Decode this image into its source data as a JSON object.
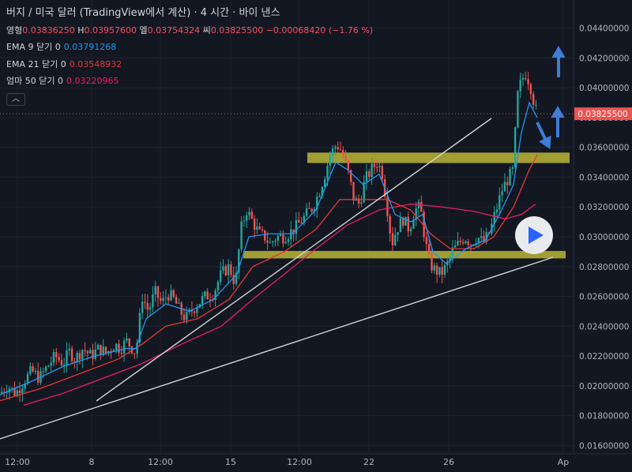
{
  "header": {
    "title": "버지 / 미국 달러 (TradingView에서 계산) · 4 시간 · 바이 낸스",
    "ohlc": {
      "o_label": "영형",
      "o": "0.03836250",
      "h_label": "H",
      "h": "0.03957600",
      "l_label": "엘",
      "l": "0.03754324",
      "c_label": "씨",
      "c": "0.03825500",
      "change": "−0.00068420 (−1.76 %)"
    },
    "indicators": [
      {
        "label": "EMA 9 닫기 0",
        "value": "0.03791268",
        "color": "#2196f3"
      },
      {
        "label": "EMA 21 닫기 0",
        "value": "0.03548932",
        "color": "#e53935"
      },
      {
        "label": "엄마 50 닫기 0",
        "value": "0.03220965",
        "color": "#e91e63"
      }
    ],
    "collapse_icon": "chevron-up-icon"
  },
  "price_label": "0.03825500",
  "colors": {
    "background": "#131722",
    "up": "#26a69a",
    "down": "#ef5350",
    "ema9": "#2196f3",
    "ema21": "#e53935",
    "ma50": "#e91e63",
    "zone": "#c5c038"
  },
  "chart_data": {
    "type": "candlestick",
    "title": "버지 / 미국 달러 (TradingView에서 계산) · 4 시간 · 바이 낸스",
    "x_ticks": [
      "12:00",
      "8",
      "12:00",
      "15",
      "12:00",
      "22",
      "26",
      "Ap"
    ],
    "y_ticks": [
      "0.04400000",
      "0.04200000",
      "0.04000000",
      "0.03800000",
      "0.03600000",
      "0.03400000",
      "0.03200000",
      "0.03000000",
      "0.02800000",
      "0.02600000",
      "0.02400000",
      "0.02200000",
      "0.02000000",
      "0.01800000",
      "0.01600000"
    ],
    "ylim": [
      0.0157,
      0.0443
    ],
    "last_price": 0.038255,
    "price_path": [
      [
        0,
        0.0195
      ],
      [
        10,
        0.02
      ],
      [
        20,
        0.0195
      ],
      [
        30,
        0.0203
      ],
      [
        40,
        0.021
      ],
      [
        50,
        0.0205
      ],
      [
        60,
        0.0213
      ],
      [
        70,
        0.022
      ],
      [
        80,
        0.0215
      ],
      [
        88,
        0.0223
      ],
      [
        95,
        0.0218
      ],
      [
        105,
        0.0225
      ],
      [
        115,
        0.022
      ],
      [
        125,
        0.0225
      ],
      [
        135,
        0.0222
      ],
      [
        145,
        0.0228
      ],
      [
        152,
        0.0225
      ],
      [
        160,
        0.023
      ],
      [
        168,
        0.0225
      ],
      [
        172,
        0.0222
      ],
      [
        180,
        0.026
      ],
      [
        188,
        0.025
      ],
      [
        196,
        0.0263
      ],
      [
        205,
        0.0255
      ],
      [
        212,
        0.0262
      ],
      [
        220,
        0.0258
      ],
      [
        228,
        0.025
      ],
      [
        235,
        0.0245
      ],
      [
        242,
        0.025
      ],
      [
        250,
        0.0255
      ],
      [
        260,
        0.026
      ],
      [
        270,
        0.0262
      ],
      [
        280,
        0.0275
      ],
      [
        290,
        0.028
      ],
      [
        298,
        0.0268
      ],
      [
        305,
        0.0305
      ],
      [
        312,
        0.0318
      ],
      [
        320,
        0.031
      ],
      [
        328,
        0.0302
      ],
      [
        335,
        0.03
      ],
      [
        342,
        0.0295
      ],
      [
        350,
        0.03
      ],
      [
        358,
        0.03
      ],
      [
        365,
        0.0302
      ],
      [
        372,
        0.0305
      ],
      [
        380,
        0.031
      ],
      [
        388,
        0.0315
      ],
      [
        396,
        0.032
      ],
      [
        404,
        0.033
      ],
      [
        410,
        0.034
      ],
      [
        418,
        0.0355
      ],
      [
        426,
        0.0362
      ],
      [
        432,
        0.0358
      ],
      [
        440,
        0.0345
      ],
      [
        448,
        0.0325
      ],
      [
        455,
        0.0322
      ],
      [
        462,
        0.0338
      ],
      [
        470,
        0.0345
      ],
      [
        478,
        0.035
      ],
      [
        484,
        0.0342
      ],
      [
        490,
        0.032
      ],
      [
        496,
        0.0295
      ],
      [
        502,
        0.0305
      ],
      [
        510,
        0.0312
      ],
      [
        518,
        0.0305
      ],
      [
        525,
        0.0318
      ],
      [
        532,
        0.032
      ],
      [
        538,
        0.0298
      ],
      [
        544,
        0.0282
      ],
      [
        550,
        0.0278
      ],
      [
        558,
        0.0275
      ],
      [
        565,
        0.028
      ],
      [
        572,
        0.029
      ],
      [
        580,
        0.0295
      ],
      [
        588,
        0.03
      ],
      [
        596,
        0.0296
      ],
      [
        604,
        0.03
      ],
      [
        612,
        0.0296
      ],
      [
        620,
        0.0303
      ],
      [
        628,
        0.0318
      ],
      [
        636,
        0.0332
      ],
      [
        644,
        0.034
      ],
      [
        650,
        0.0345
      ],
      [
        654,
        0.0392
      ],
      [
        660,
        0.0405
      ],
      [
        666,
        0.041
      ],
      [
        672,
        0.04
      ],
      [
        678,
        0.0385
      ]
    ],
    "ema9": [
      [
        0,
        0.0194
      ],
      [
        40,
        0.0203
      ],
      [
        80,
        0.0213
      ],
      [
        120,
        0.022
      ],
      [
        160,
        0.0225
      ],
      [
        172,
        0.0225
      ],
      [
        185,
        0.0245
      ],
      [
        210,
        0.0255
      ],
      [
        240,
        0.025
      ],
      [
        270,
        0.0258
      ],
      [
        300,
        0.0275
      ],
      [
        315,
        0.03
      ],
      [
        340,
        0.0302
      ],
      [
        370,
        0.0302
      ],
      [
        400,
        0.0318
      ],
      [
        425,
        0.035
      ],
      [
        440,
        0.0345
      ],
      [
        460,
        0.0335
      ],
      [
        480,
        0.0342
      ],
      [
        500,
        0.0315
      ],
      [
        520,
        0.031
      ],
      [
        535,
        0.0315
      ],
      [
        548,
        0.029
      ],
      [
        565,
        0.0282
      ],
      [
        590,
        0.0292
      ],
      [
        615,
        0.0298
      ],
      [
        635,
        0.0318
      ],
      [
        650,
        0.0335
      ],
      [
        660,
        0.037
      ],
      [
        670,
        0.039
      ],
      [
        680,
        0.038
      ]
    ],
    "ema21": [
      [
        0,
        0.019
      ],
      [
        50,
        0.0198
      ],
      [
        100,
        0.0208
      ],
      [
        150,
        0.0218
      ],
      [
        180,
        0.0228
      ],
      [
        210,
        0.024
      ],
      [
        250,
        0.0245
      ],
      [
        290,
        0.0258
      ],
      [
        320,
        0.028
      ],
      [
        360,
        0.029
      ],
      [
        400,
        0.0305
      ],
      [
        430,
        0.0325
      ],
      [
        460,
        0.0325
      ],
      [
        490,
        0.0325
      ],
      [
        520,
        0.0318
      ],
      [
        545,
        0.0302
      ],
      [
        570,
        0.0292
      ],
      [
        600,
        0.0292
      ],
      [
        625,
        0.03
      ],
      [
        650,
        0.032
      ],
      [
        670,
        0.0345
      ],
      [
        680,
        0.0355
      ]
    ],
    "ma50": [
      [
        30,
        0.0187
      ],
      [
        80,
        0.0195
      ],
      [
        130,
        0.0205
      ],
      [
        180,
        0.0215
      ],
      [
        230,
        0.0228
      ],
      [
        280,
        0.024
      ],
      [
        320,
        0.0258
      ],
      [
        360,
        0.0275
      ],
      [
        400,
        0.0292
      ],
      [
        440,
        0.0308
      ],
      [
        480,
        0.0318
      ],
      [
        520,
        0.0322
      ],
      [
        560,
        0.032
      ],
      [
        600,
        0.0317
      ],
      [
        640,
        0.0312
      ],
      [
        660,
        0.0315
      ],
      [
        678,
        0.0322
      ]
    ]
  }
}
